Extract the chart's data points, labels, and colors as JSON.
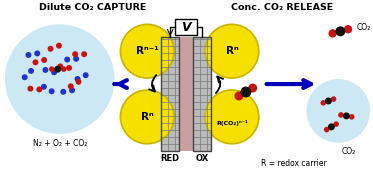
{
  "title_left": "Dilute CO₂ CAPTURE",
  "title_right": "Conc. CO₂ RELEASE",
  "bg_color": "#ffffff",
  "light_blue": "#cce8f4",
  "yellow": "#f5e000",
  "yellow_edge": "#c8b400",
  "arrow_blue": "#0000bb",
  "red_color": "#cc1111",
  "black_color": "#111111",
  "blue_color": "#2233cc",
  "pink_center": "#c8a0a0",
  "label_red": "RED",
  "label_ox": "OX",
  "label_rn_upper_left": "Rⁿ⁻¹",
  "label_rn_lower_left": "Rⁿ",
  "label_rn_upper_right": "Rⁿ",
  "label_rn_lower_right": "R(CO₂)ⁿ⁻¹",
  "label_gas_mix": "N₂ + O₂ + CO₂",
  "label_co2_upper": "CO₂",
  "label_co2_lower": "CO₂",
  "label_redox": "R = redox carrier",
  "voltage_label": "V",
  "figw": 3.73,
  "figh": 1.89,
  "dpi": 100
}
